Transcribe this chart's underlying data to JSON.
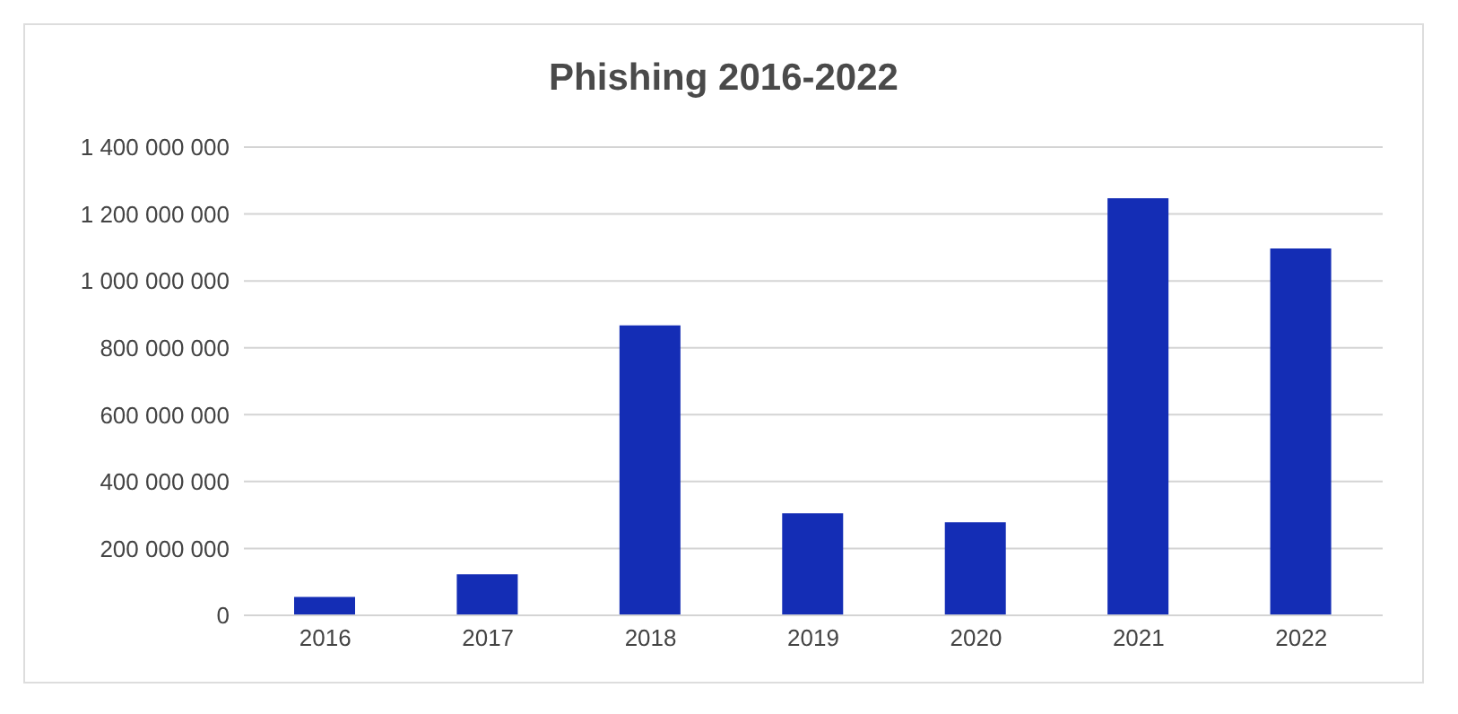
{
  "chart_data": {
    "type": "bar",
    "title": "Phishing 2016-2022",
    "categories": [
      "2016",
      "2017",
      "2018",
      "2019",
      "2020",
      "2021",
      "2022"
    ],
    "values": [
      55000000,
      123000000,
      867000000,
      305000000,
      278000000,
      1247000000,
      1097000000
    ],
    "color": "#142db5",
    "ylim": [
      0,
      1400000000
    ],
    "yticks": [
      {
        "value": 0,
        "label": "0"
      },
      {
        "value": 200000000,
        "label": "200 000 000"
      },
      {
        "value": 400000000,
        "label": "400 000 000"
      },
      {
        "value": 600000000,
        "label": "600 000 000"
      },
      {
        "value": 800000000,
        "label": "800 000 000"
      },
      {
        "value": 1000000000,
        "label": "1 000 000 000"
      },
      {
        "value": 1200000000,
        "label": "1 200 000 000"
      },
      {
        "value": 1400000000,
        "label": "1 400 000 000"
      }
    ],
    "grid": "y",
    "legend": false
  }
}
